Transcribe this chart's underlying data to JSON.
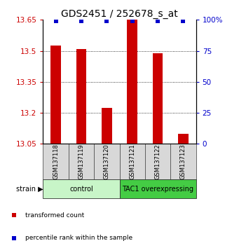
{
  "title": "GDS2451 / 252678_s_at",
  "samples": [
    "GSM137118",
    "GSM137119",
    "GSM137120",
    "GSM137121",
    "GSM137122",
    "GSM137123"
  ],
  "red_values": [
    13.525,
    13.51,
    13.225,
    13.655,
    13.49,
    13.1
  ],
  "blue_percentiles": [
    100,
    100,
    100,
    100,
    100,
    100
  ],
  "ylim_left": [
    13.05,
    13.65
  ],
  "ylim_right": [
    0,
    100
  ],
  "left_ticks": [
    13.05,
    13.2,
    13.35,
    13.5,
    13.65
  ],
  "right_ticks": [
    0,
    25,
    50,
    75,
    100
  ],
  "right_tick_labels": [
    "0",
    "25",
    "50",
    "75",
    "100%"
  ],
  "groups": [
    {
      "label": "control",
      "indices": [
        0,
        1,
        2
      ],
      "color": "#c8f5c8"
    },
    {
      "label": "TAC1 overexpressing",
      "indices": [
        3,
        4,
        5
      ],
      "color": "#44cc44"
    }
  ],
  "red_color": "#cc0000",
  "blue_color": "#0000cc",
  "bar_width": 0.4,
  "strain_label": "strain",
  "legend_items": [
    {
      "color": "#cc0000",
      "label": "transformed count"
    },
    {
      "color": "#0000cc",
      "label": "percentile rank within the sample"
    }
  ],
  "title_fontsize": 10,
  "tick_fontsize": 7.5,
  "sample_fontsize": 6,
  "group_fontsize": 7,
  "legend_fontsize": 6.5
}
